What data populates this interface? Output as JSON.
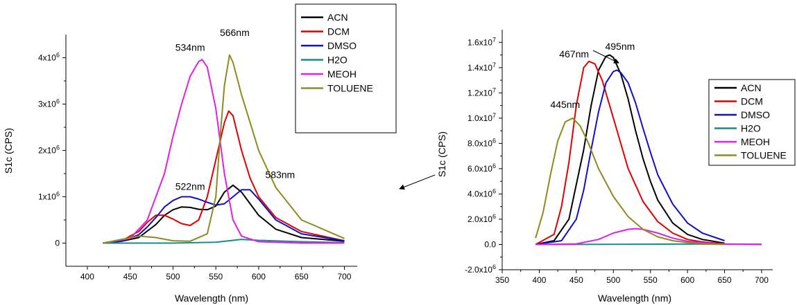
{
  "chart_data": [
    {
      "type": "line",
      "xlabel": "Wavelength (nm)",
      "ylabel": "S1c (CPS)",
      "xlim": [
        375,
        715
      ],
      "ylim": [
        -500000,
        4500000
      ],
      "grid": false,
      "legend": "top-right",
      "xticks": [
        {
          "value": 400,
          "label": "400"
        },
        {
          "value": 450,
          "label": "450"
        },
        {
          "value": 500,
          "label": "500"
        },
        {
          "value": 550,
          "label": "550"
        },
        {
          "value": 600,
          "label": "600"
        },
        {
          "value": 650,
          "label": "650"
        },
        {
          "value": 700,
          "label": "700"
        }
      ],
      "yticks": [
        {
          "value": 0,
          "base": "0",
          "exp": ""
        },
        {
          "value": 1000000,
          "base": "1x10",
          "exp": "6"
        },
        {
          "value": 2000000,
          "base": "2x10",
          "exp": "6"
        },
        {
          "value": 3000000,
          "base": "3x10",
          "exp": "6"
        },
        {
          "value": 4000000,
          "base": "4x10",
          "exp": "6"
        }
      ],
      "series": [
        {
          "name": "ACN",
          "color": "#000000",
          "x": [
            418,
            440,
            460,
            480,
            490,
            500,
            510,
            520,
            530,
            540,
            550,
            560,
            570,
            580,
            590,
            600,
            620,
            650,
            700
          ],
          "y": [
            0,
            40000,
            120000,
            400000,
            600000,
            720000,
            780000,
            770000,
            730000,
            720000,
            800000,
            1100000,
            1250000,
            1100000,
            850000,
            600000,
            300000,
            120000,
            40000
          ]
        },
        {
          "name": "DCM",
          "color": "#e00000",
          "x": [
            418,
            440,
            460,
            470,
            480,
            490,
            500,
            510,
            520,
            530,
            540,
            550,
            560,
            565,
            570,
            580,
            590,
            600,
            620,
            650,
            700
          ],
          "y": [
            0,
            50000,
            250000,
            450000,
            600000,
            600000,
            520000,
            420000,
            380000,
            500000,
            1000000,
            1800000,
            2600000,
            2850000,
            2750000,
            2000000,
            1400000,
            1000000,
            550000,
            250000,
            50000
          ]
        },
        {
          "name": "DMSO",
          "color": "#1010c0",
          "x": [
            418,
            440,
            460,
            470,
            480,
            490,
            500,
            510,
            520,
            530,
            540,
            550,
            560,
            570,
            580,
            590,
            600,
            620,
            650,
            700
          ],
          "y": [
            0,
            40000,
            180000,
            350000,
            550000,
            780000,
            920000,
            1000000,
            1000000,
            950000,
            880000,
            820000,
            850000,
            1000000,
            1150000,
            1150000,
            950000,
            500000,
            200000,
            50000
          ]
        },
        {
          "name": "H2O",
          "color": "#1a8a8a",
          "x": [
            418,
            500,
            550,
            570,
            580,
            600,
            650,
            700
          ],
          "y": [
            0,
            0,
            20000,
            60000,
            80000,
            60000,
            30000,
            10000
          ]
        },
        {
          "name": "MEOH",
          "color": "#e020e0",
          "x": [
            418,
            450,
            470,
            490,
            500,
            510,
            520,
            530,
            534,
            540,
            550,
            560,
            570,
            580,
            600,
            650,
            700
          ],
          "y": [
            0,
            100000,
            500000,
            1500000,
            2300000,
            3000000,
            3600000,
            3920000,
            3960000,
            3800000,
            2900000,
            1500000,
            500000,
            150000,
            30000,
            0,
            0
          ]
        },
        {
          "name": "TOLUENE",
          "color": "#8b8b20",
          "x": [
            418,
            440,
            460,
            480,
            500,
            520,
            540,
            550,
            555,
            560,
            566,
            570,
            580,
            590,
            600,
            620,
            650,
            700
          ],
          "y": [
            0,
            80000,
            150000,
            120000,
            50000,
            40000,
            200000,
            1000000,
            2300000,
            3400000,
            4060000,
            3900000,
            3200000,
            2600000,
            2000000,
            1200000,
            500000,
            100000
          ]
        }
      ],
      "annotations": [
        {
          "text": "534nm",
          "x": 520,
          "y": 4150000
        },
        {
          "text": "566nm",
          "x": 572,
          "y": 4470000
        },
        {
          "text": "522nm",
          "x": 520,
          "y": 1150000
        },
        {
          "text": "583nm",
          "x": 625,
          "y": 1400000
        }
      ]
    },
    {
      "type": "line",
      "xlabel": "Wavelength (nm)",
      "ylabel": "S1c (CPS)",
      "xlim": [
        350,
        715
      ],
      "ylim": [
        -2000000,
        17000000
      ],
      "grid": false,
      "legend": "right",
      "xticks": [
        {
          "value": 350,
          "label": "350"
        },
        {
          "value": 400,
          "label": "400"
        },
        {
          "value": 450,
          "label": "450"
        },
        {
          "value": 500,
          "label": "500"
        },
        {
          "value": 550,
          "label": "550"
        },
        {
          "value": 600,
          "label": "600"
        },
        {
          "value": 650,
          "label": "650"
        },
        {
          "value": 700,
          "label": "700"
        }
      ],
      "yticks": [
        {
          "value": -2000000,
          "base": "-2.0x10",
          "exp": "6"
        },
        {
          "value": 0,
          "base": "0.0",
          "exp": ""
        },
        {
          "value": 2000000,
          "base": "2.0x10",
          "exp": "6"
        },
        {
          "value": 4000000,
          "base": "4.0x10",
          "exp": "6"
        },
        {
          "value": 6000000,
          "base": "6.0x10",
          "exp": "6"
        },
        {
          "value": 8000000,
          "base": "8.0x10",
          "exp": "6"
        },
        {
          "value": 10000000,
          "base": "1.0x10",
          "exp": "7"
        },
        {
          "value": 12000000,
          "base": "1.2x10",
          "exp": "7"
        },
        {
          "value": 14000000,
          "base": "1.4x10",
          "exp": "7"
        },
        {
          "value": 16000000,
          "base": "1.6x10",
          "exp": "7"
        }
      ],
      "series": [
        {
          "name": "ACN",
          "color": "#000000",
          "x": [
            395,
            420,
            440,
            460,
            470,
            480,
            490,
            495,
            500,
            510,
            520,
            530,
            540,
            550,
            560,
            580,
            600,
            620,
            650
          ],
          "y": [
            0,
            300000,
            2000000,
            7500000,
            11000000,
            13800000,
            14900000,
            15000000,
            14800000,
            13500000,
            11500000,
            9000000,
            6800000,
            5000000,
            3500000,
            1700000,
            800000,
            400000,
            100000
          ]
        },
        {
          "name": "DCM",
          "color": "#e00000",
          "x": [
            395,
            420,
            430,
            440,
            450,
            460,
            467,
            475,
            485,
            500,
            520,
            540,
            560,
            580,
            600,
            620,
            650
          ],
          "y": [
            0,
            800000,
            3000000,
            6500000,
            11000000,
            14000000,
            14500000,
            14300000,
            13000000,
            10000000,
            6000000,
            3400000,
            1800000,
            900000,
            400000,
            200000,
            50000
          ]
        },
        {
          "name": "DMSO",
          "color": "#1010c0",
          "x": [
            395,
            430,
            450,
            460,
            470,
            480,
            490,
            500,
            505,
            510,
            520,
            530,
            540,
            550,
            560,
            580,
            600,
            620,
            650
          ],
          "y": [
            0,
            300000,
            2000000,
            4300000,
            7500000,
            10500000,
            12800000,
            13700000,
            13800000,
            13600000,
            12800000,
            11200000,
            9200000,
            7300000,
            5500000,
            3200000,
            1700000,
            900000,
            300000
          ]
        },
        {
          "name": "H2O",
          "color": "#1a8a8a",
          "x": [
            395,
            500,
            600,
            700
          ],
          "y": [
            0,
            10000,
            30000,
            20000
          ]
        },
        {
          "name": "MEOH",
          "color": "#e020e0",
          "x": [
            395,
            450,
            480,
            500,
            520,
            530,
            540,
            560,
            580,
            600,
            640,
            700
          ],
          "y": [
            0,
            50000,
            400000,
            900000,
            1200000,
            1250000,
            1200000,
            900000,
            500000,
            250000,
            50000,
            0
          ]
        },
        {
          "name": "TOLUENE",
          "color": "#8b8b20",
          "x": [
            395,
            405,
            415,
            425,
            435,
            445,
            455,
            465,
            480,
            500,
            520,
            540,
            560,
            580,
            600,
            620,
            650
          ],
          "y": [
            500000,
            2500000,
            5500000,
            8200000,
            9700000,
            10000000,
            9400000,
            8200000,
            6000000,
            3800000,
            2200000,
            1200000,
            600000,
            300000,
            150000,
            50000,
            0
          ]
        }
      ],
      "annotations": [
        {
          "text": "445nm",
          "x": 435,
          "y": 10800000
        },
        {
          "text": "467nm",
          "x": 447,
          "y": 14800000
        },
        {
          "text": "495nm",
          "x": 509,
          "y": 15400000
        }
      ]
    }
  ]
}
